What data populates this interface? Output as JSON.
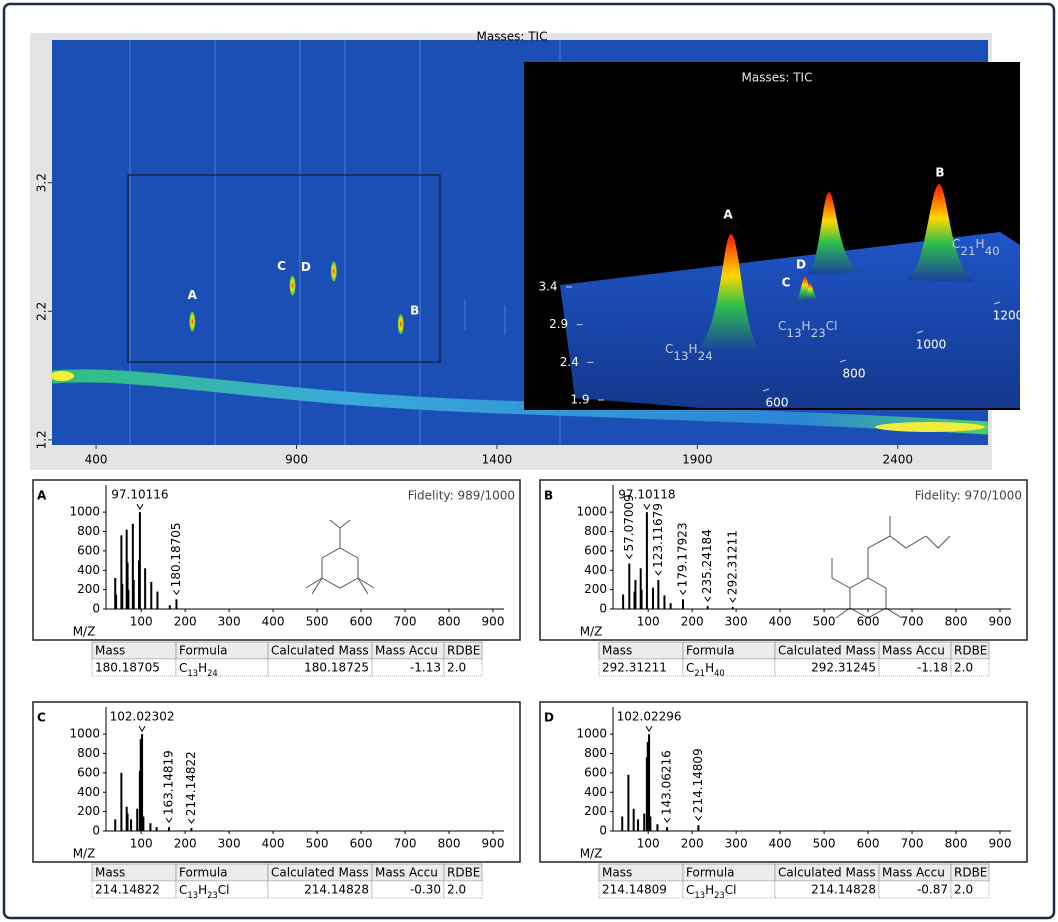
{
  "chart_data": [
    {
      "type": "heatmap",
      "title": "Masses: TIC",
      "xlim": [
        290,
        2625
      ],
      "xticks": [
        400,
        900,
        1400,
        1900,
        2400
      ],
      "ylim": [
        1.16,
        4.31
      ],
      "yticks": [
        1.2,
        2.2,
        3.2
      ],
      "peaks": [
        {
          "label": "A",
          "x": 640,
          "y": 2.12
        },
        {
          "label": "B",
          "x": 1160,
          "y": 2.1
        },
        {
          "label": "C",
          "x": 890,
          "y": 2.4
        },
        {
          "label": "D",
          "x": 993,
          "y": 2.51
        }
      ]
    },
    {
      "type": "surface3d",
      "title": "Masses: TIC",
      "xticks": [
        600,
        800,
        1000,
        1200
      ],
      "yticks": [
        1.9,
        2.4,
        2.9,
        3.4
      ],
      "peaks": [
        {
          "label": "A"
        },
        {
          "label": "B"
        },
        {
          "label": "C"
        },
        {
          "label": "D"
        }
      ],
      "annotations": [
        "C13H24",
        "C13H23Cl",
        "C21H40"
      ]
    },
    {
      "type": "spectrum",
      "panel": "A",
      "title": "Fidelity: 989/1000",
      "x_label": "M/Z",
      "xlim": [
        20,
        925
      ],
      "xticks": [
        100,
        200,
        300,
        400,
        500,
        600,
        700,
        800,
        900
      ],
      "ylim": [
        0,
        1280
      ],
      "yticks": [
        0,
        200,
        400,
        600,
        800,
        1000
      ],
      "color": "#000000",
      "x": [
        41,
        43,
        55,
        57,
        67,
        69,
        71,
        81,
        83,
        95,
        97.10116,
        109,
        123,
        137,
        165,
        180.18705
      ],
      "values": [
        320,
        150,
        760,
        260,
        820,
        480,
        200,
        880,
        300,
        500,
        1000,
        420,
        280,
        180,
        40,
        100
      ],
      "annotations": [
        {
          "x": 97.10116,
          "y": 1000
        },
        {
          "x": 180.18705,
          "y": 100
        }
      ],
      "table": {
        "columns": [
          "Mass",
          "Formula",
          "Calculated Mass",
          "Mass Accu",
          "RDBE"
        ],
        "rows": [
          [
            "180.18705",
            "C13H24",
            "180.18725",
            "-1.13",
            "2.0"
          ]
        ]
      }
    },
    {
      "type": "spectrum",
      "panel": "B",
      "title": "Fidelity: 970/1000",
      "x_label": "M/Z",
      "xlim": [
        20,
        925
      ],
      "xticks": [
        100,
        200,
        300,
        400,
        500,
        600,
        700,
        800,
        900
      ],
      "ylim": [
        0,
        1280
      ],
      "yticks": [
        0,
        200,
        400,
        600,
        800,
        1000
      ],
      "color": "#000000",
      "x": [
        43,
        57.07009,
        69,
        71,
        83,
        85,
        97.10118,
        111,
        123.11679,
        137,
        151,
        179.17923,
        235.24184,
        292.31211
      ],
      "values": [
        150,
        470,
        180,
        300,
        420,
        200,
        1000,
        220,
        300,
        140,
        60,
        100,
        30,
        20
      ],
      "annotations": [
        {
          "x": 97.10118,
          "y": 1000
        },
        {
          "x": 57.07009,
          "y": 470
        },
        {
          "x": 123.11679,
          "y": 300
        },
        {
          "x": 179.17923,
          "y": 100
        },
        {
          "x": 235.24184,
          "y": 30
        },
        {
          "x": 292.31211,
          "y": 20
        }
      ],
      "table": {
        "columns": [
          "Mass",
          "Formula",
          "Calculated Mass",
          "Mass Accu",
          "RDBE"
        ],
        "rows": [
          [
            "292.31211",
            "C21H40",
            "292.31245",
            "-1.18",
            "2.0"
          ]
        ]
      }
    },
    {
      "type": "spectrum",
      "panel": "C",
      "x_label": "M/Z",
      "xlim": [
        20,
        925
      ],
      "xticks": [
        100,
        200,
        300,
        400,
        500,
        600,
        700,
        800,
        900
      ],
      "ylim": [
        0,
        1280
      ],
      "yticks": [
        0,
        200,
        400,
        600,
        800,
        1000
      ],
      "color": "#000000",
      "x": [
        41,
        55,
        67,
        69,
        77,
        91,
        97,
        99,
        102.02302,
        105,
        121,
        135,
        163.14819,
        214.14822
      ],
      "values": [
        120,
        600,
        250,
        180,
        120,
        230,
        620,
        950,
        1000,
        150,
        80,
        40,
        40,
        30
      ],
      "annotations": [
        {
          "x": 102.02302,
          "y": 1000
        },
        {
          "x": 163.14819,
          "y": 40
        },
        {
          "x": 214.14822,
          "y": 30
        }
      ],
      "table": {
        "columns": [
          "Mass",
          "Formula",
          "Calculated Mass",
          "Mass Accu",
          "RDBE"
        ],
        "rows": [
          [
            "214.14822",
            "C13H23Cl",
            "214.14828",
            "-0.30",
            "2.0"
          ]
        ]
      }
    },
    {
      "type": "spectrum",
      "panel": "D",
      "x_label": "M/Z",
      "xlim": [
        20,
        925
      ],
      "xticks": [
        100,
        200,
        300,
        400,
        500,
        600,
        700,
        800,
        900
      ],
      "ylim": [
        0,
        1280
      ],
      "yticks": [
        0,
        200,
        400,
        600,
        800,
        1000
      ],
      "color": "#000000",
      "x": [
        41,
        55,
        67,
        77,
        91,
        97,
        99,
        102.02296,
        105,
        121,
        143.06216,
        214.14809
      ],
      "values": [
        150,
        580,
        230,
        120,
        180,
        760,
        920,
        1000,
        150,
        70,
        40,
        60
      ],
      "annotations": [
        {
          "x": 102.02296,
          "y": 1000
        },
        {
          "x": 143.06216,
          "y": 40
        },
        {
          "x": 214.14809,
          "y": 60
        }
      ],
      "table": {
        "columns": [
          "Mass",
          "Formula",
          "Calculated Mass",
          "Mass Accu",
          "RDBE"
        ],
        "rows": [
          [
            "214.14809",
            "C13H23Cl",
            "214.14828",
            "-0.87",
            "2.0"
          ]
        ]
      }
    }
  ]
}
